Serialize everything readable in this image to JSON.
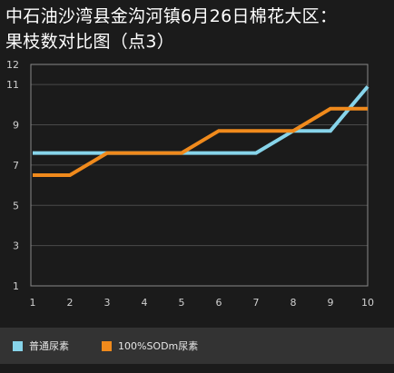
{
  "chart_data": {
    "type": "line",
    "title": "中石油沙湾县金沟河镇6月26日棉花大区：\n果枝数对比图（点3）",
    "x": [
      1,
      2,
      3,
      4,
      5,
      6,
      7,
      8,
      9,
      10
    ],
    "xticks": [
      "1",
      "2",
      "3",
      "4",
      "5",
      "6",
      "7",
      "8",
      "9",
      "10"
    ],
    "yticks": [
      "1",
      "3",
      "5",
      "7",
      "9",
      "11",
      "12"
    ],
    "ylim": [
      1,
      12
    ],
    "xlim": [
      1,
      10
    ],
    "grid": true,
    "legend_position": "bottom",
    "series": [
      {
        "name": "普通尿素",
        "color": "#87d4ea",
        "values": [
          7.6,
          7.6,
          7.6,
          7.6,
          7.6,
          7.6,
          7.6,
          8.7,
          8.7,
          10.9
        ]
      },
      {
        "name": "100%SODm尿素",
        "color": "#f08a1c",
        "values": [
          6.5,
          6.5,
          7.6,
          7.6,
          7.6,
          8.7,
          8.7,
          8.7,
          9.8,
          9.8
        ]
      }
    ]
  }
}
